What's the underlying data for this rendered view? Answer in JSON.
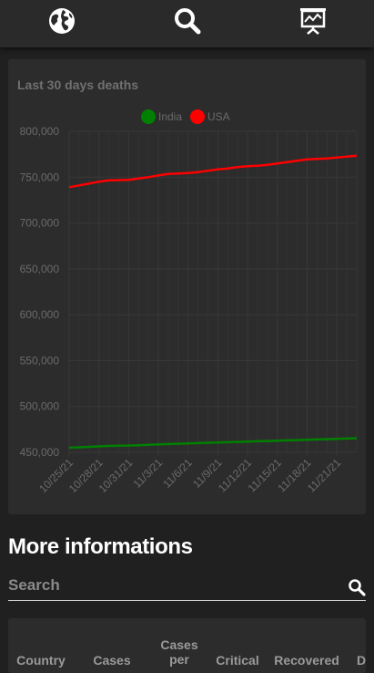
{
  "nav": {
    "items": [
      {
        "name": "globe-icon"
      },
      {
        "name": "search-icon"
      },
      {
        "name": "chart-presentation-icon"
      }
    ]
  },
  "chart_card": {
    "title": "Last 30 days deaths"
  },
  "chart_data": {
    "type": "line",
    "title": "Last 30 days deaths",
    "legend_position": "top-center",
    "grid": true,
    "ylim": [
      450000,
      800000
    ],
    "y_ticks": [
      "800,000",
      "750,000",
      "700,000",
      "650,000",
      "600,000",
      "550,000",
      "500,000",
      "450,000"
    ],
    "x_tick_labels": [
      "10/25/21",
      "10/28/21",
      "10/31/21",
      "11/3/21",
      "11/6/21",
      "11/9/21",
      "11/12/21",
      "11/15/21",
      "11/18/21",
      "11/21/21"
    ],
    "x": [
      "10/25/21",
      "10/26/21",
      "10/27/21",
      "10/28/21",
      "10/29/21",
      "10/30/21",
      "10/31/21",
      "11/1/21",
      "11/2/21",
      "11/3/21",
      "11/4/21",
      "11/5/21",
      "11/6/21",
      "11/7/21",
      "11/8/21",
      "11/9/21",
      "11/10/21",
      "11/11/21",
      "11/12/21",
      "11/13/21",
      "11/14/21",
      "11/15/21",
      "11/16/21",
      "11/17/21",
      "11/18/21",
      "11/19/21",
      "11/20/21",
      "11/21/21",
      "11/22/21",
      "11/23/21"
    ],
    "series": [
      {
        "name": "India",
        "color": "#008000",
        "values": [
          455000,
          455500,
          456000,
          456500,
          457000,
          457200,
          457400,
          457800,
          458200,
          458600,
          459000,
          459300,
          459600,
          460000,
          460400,
          460700,
          461000,
          461300,
          461600,
          462000,
          462300,
          462600,
          463000,
          463300,
          463600,
          464000,
          464300,
          464600,
          465000,
          465300
        ]
      },
      {
        "name": "USA",
        "color": "#ff0000",
        "values": [
          739000,
          741000,
          743000,
          745000,
          746500,
          746800,
          747000,
          748500,
          750000,
          752000,
          753500,
          754000,
          754500,
          755500,
          757000,
          758500,
          759500,
          761000,
          762000,
          762500,
          763500,
          765000,
          766500,
          768000,
          769500,
          770000,
          770500,
          771500,
          772500,
          773500
        ]
      }
    ]
  },
  "more_info": {
    "title": "More informations",
    "search_placeholder": "Search"
  },
  "table": {
    "headers": [
      "Country",
      "Cases",
      "Cases per",
      "Critical",
      "Recovered",
      "D"
    ]
  }
}
